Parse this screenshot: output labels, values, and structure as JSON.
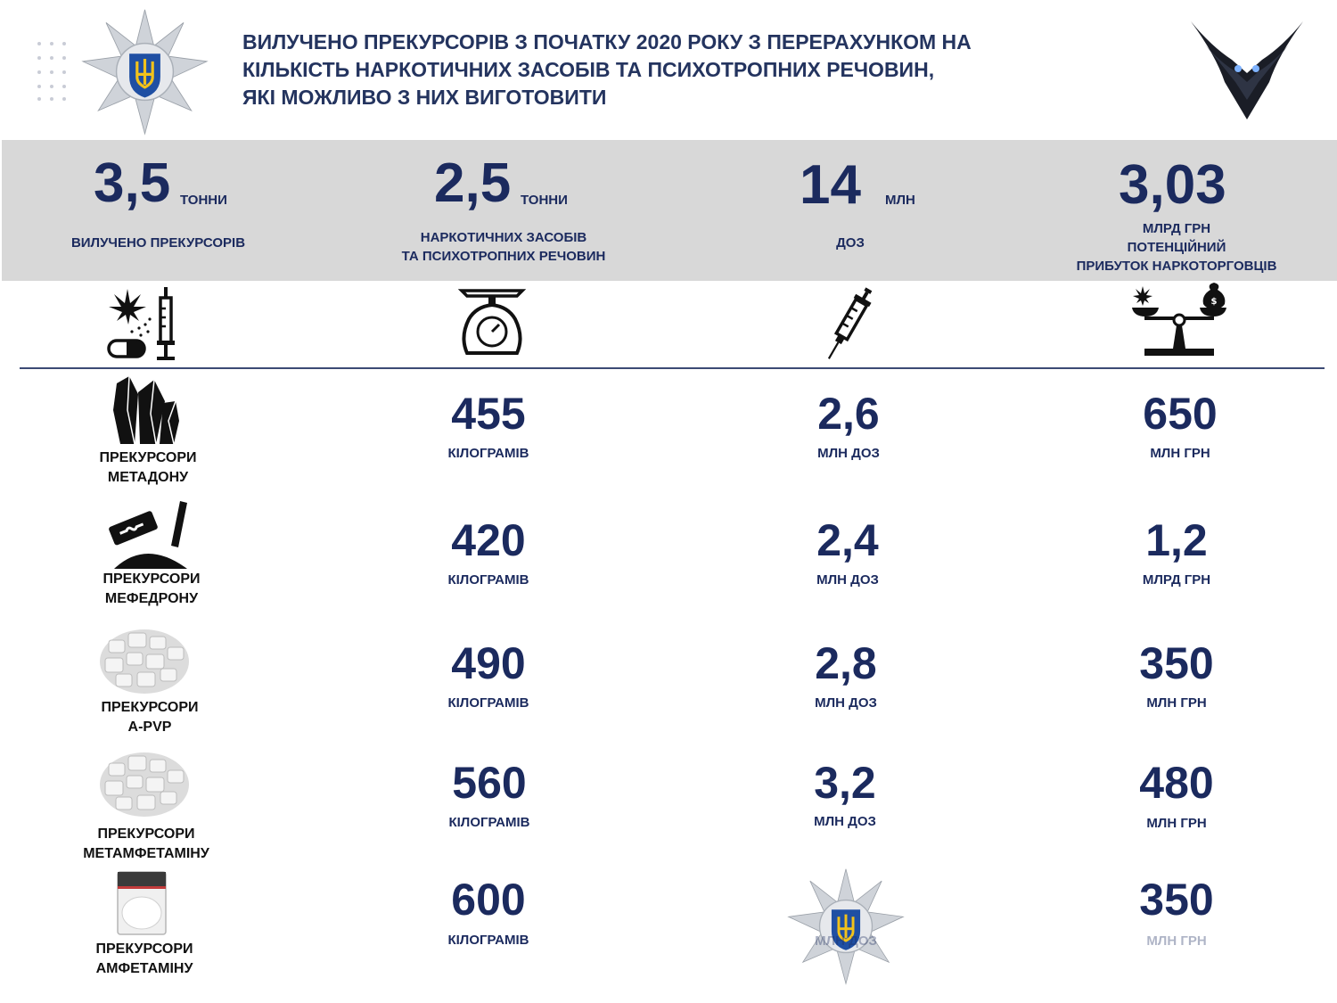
{
  "header": {
    "title_lines": [
      "ВИЛУЧЕНО ПРЕКУРСОРІВ З ПОЧАТКУ 2020 РОКУ З ПЕРЕРАХУНКОМ НА",
      "КІЛЬКІСТЬ НАРКОТИЧНИХ ЗАСОБІВ ТА ПСИХОТРОПНИХ РЕЧОВИН,",
      "ЯКІ МОЖЛИВО З НИХ ВИГОТОВИТИ"
    ],
    "left_logo_icon": "national-police-star-emblem",
    "right_logo_icon": "owl-emblem"
  },
  "summary": [
    {
      "value": "3,5",
      "unit": "ТОННИ",
      "caption": [
        "ВИЛУЧЕНО ПРЕКУРСОРІВ"
      ],
      "icon": "drugs-cannabis-syringe-pill-icon"
    },
    {
      "value": "2,5",
      "unit": "ТОННИ",
      "caption": [
        "НАРКОТИЧНИХ ЗАСОБІВ",
        "ТА ПСИХОТРОПНИХ РЕЧОВИН"
      ],
      "icon": "kitchen-scale-icon"
    },
    {
      "value": "14",
      "unit": "МЛН",
      "caption": [
        "ДОЗ"
      ],
      "icon": "syringe-icon"
    },
    {
      "value": "3,03",
      "unit": "",
      "caption": [
        "МЛРД ГРН",
        "ПОТЕНЦІЙНИЙ",
        "ПРИБУТОК НАРКОТОРГОВЦІВ"
      ],
      "icon": "balance-scale-money-icon"
    }
  ],
  "rows": [
    {
      "label": [
        "ПРЕКУРСОРИ",
        "МЕТАДОНУ"
      ],
      "icon": "crystals-icon",
      "kg": "455",
      "kg_unit": "КІЛОГРАМІВ",
      "doses": "2,6",
      "doses_unit": "МЛН ДОЗ",
      "profit": "650",
      "profit_unit": "МЛН ГРН"
    },
    {
      "label": [
        "ПРЕКУРСОРИ",
        "МЕФЕДРОНУ"
      ],
      "icon": "razor-blade-powder-icon",
      "kg": "420",
      "kg_unit": "КІЛОГРАМІВ",
      "doses": "2,4",
      "doses_unit": "МЛН ДОЗ",
      "profit": "1,2",
      "profit_unit": "МЛРД ГРН"
    },
    {
      "label": [
        "ПРЕКУРСОРИ",
        "А-PVP"
      ],
      "icon": "white-crystals-photo",
      "kg": "490",
      "kg_unit": "КІЛОГРАМІВ",
      "doses": "2,8",
      "doses_unit": "МЛН ДОЗ",
      "profit": "350",
      "profit_unit": "МЛН ГРН"
    },
    {
      "label": [
        "ПРЕКУРСОРИ",
        "МЕТАМФЕТАМІНУ"
      ],
      "icon": "white-crystals-photo",
      "kg": "560",
      "kg_unit": "КІЛОГРАМІВ",
      "doses": "3,2",
      "doses_unit": "МЛН ДОЗ",
      "profit": "480",
      "profit_unit": "МЛН ГРН"
    },
    {
      "label": [
        "ПРЕКУРСОРИ",
        "АМФЕТАМІНУ"
      ],
      "icon": "powder-bag-photo",
      "kg": "600",
      "kg_unit": "КІЛОГРАМІВ",
      "doses": "",
      "doses_unit": "МЛН ДОЗ",
      "profit": "350",
      "profit_unit": "МЛН ГРН"
    }
  ],
  "colors": {
    "navy": "#1b2a5e",
    "band": "#d8d8d8",
    "rule": "#3c4a74"
  }
}
